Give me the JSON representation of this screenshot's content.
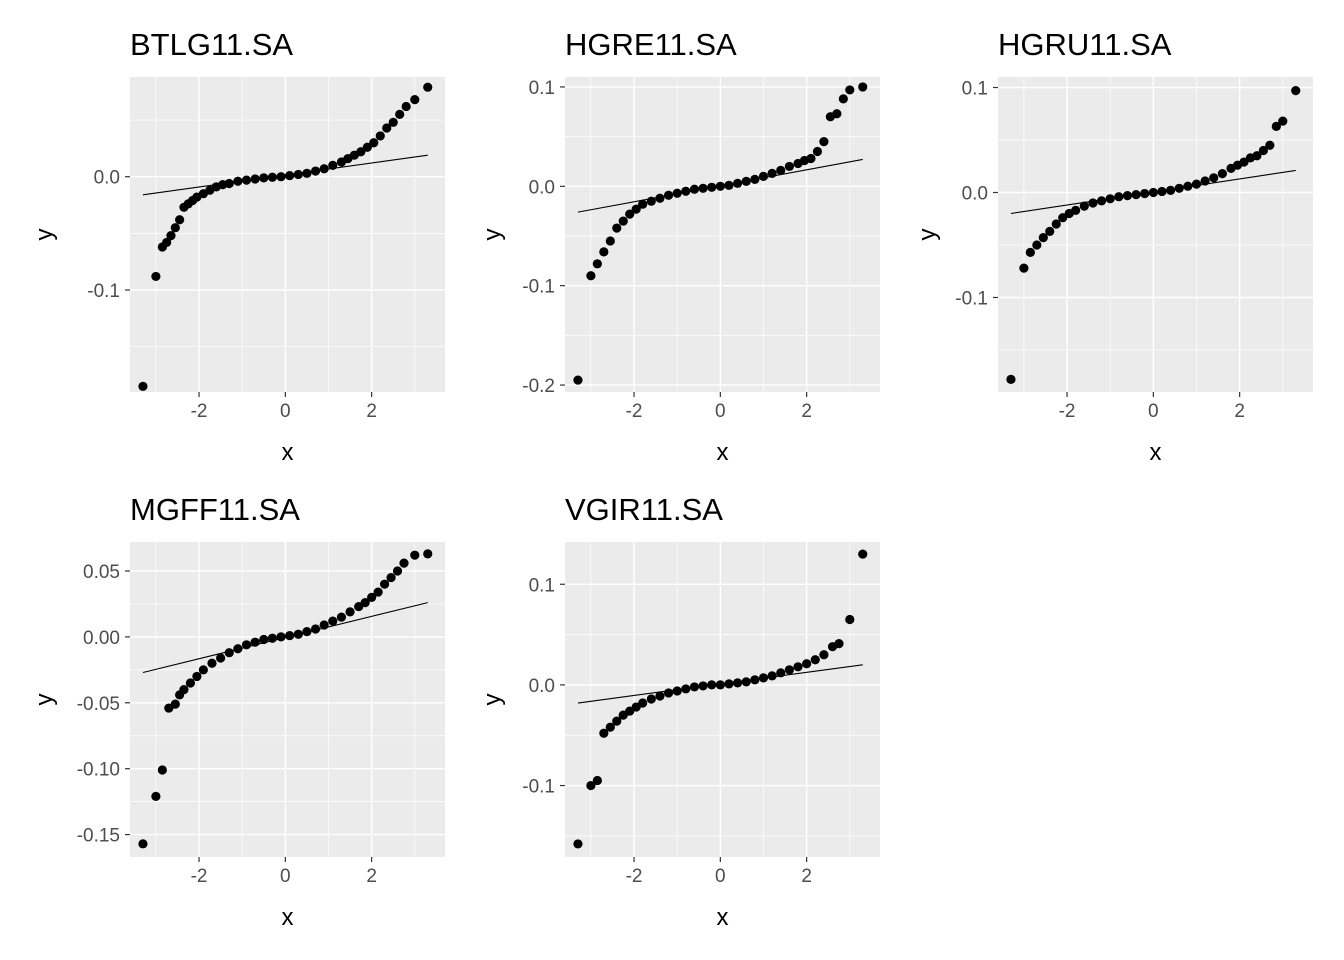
{
  "chart_data": [
    {
      "type": "scatter",
      "title": "BTLG11.SA",
      "xlabel": "x",
      "ylabel": "y",
      "xlim": [
        -3.6,
        3.7
      ],
      "ylim": [
        -0.19,
        0.088
      ],
      "x_ticks": [
        -2,
        0,
        2
      ],
      "x_tick_labels": [
        "-2",
        "0",
        "2"
      ],
      "y_ticks": [
        0.0,
        -0.1
      ],
      "y_tick_labels": [
        "0.0",
        "-0.1"
      ],
      "grid": true,
      "reference_line": [
        [
          -3.3,
          -0.016
        ],
        [
          3.3,
          0.019
        ]
      ],
      "x": [
        -3.3,
        -3.0,
        -2.85,
        -2.75,
        -2.65,
        -2.55,
        -2.45,
        -2.35,
        -2.25,
        -2.15,
        -2.05,
        -1.9,
        -1.75,
        -1.6,
        -1.45,
        -1.3,
        -1.1,
        -0.9,
        -0.7,
        -0.5,
        -0.3,
        -0.1,
        0.1,
        0.3,
        0.5,
        0.7,
        0.9,
        1.1,
        1.3,
        1.45,
        1.6,
        1.75,
        1.9,
        2.05,
        2.2,
        2.35,
        2.5,
        2.65,
        2.8,
        3.0,
        3.3
      ],
      "y": [
        -0.185,
        -0.088,
        -0.062,
        -0.058,
        -0.052,
        -0.045,
        -0.038,
        -0.027,
        -0.024,
        -0.021,
        -0.018,
        -0.015,
        -0.012,
        -0.009,
        -0.007,
        -0.006,
        -0.004,
        -0.003,
        -0.002,
        -0.001,
        -0.0005,
        0.0,
        0.001,
        0.002,
        0.003,
        0.005,
        0.007,
        0.01,
        0.013,
        0.016,
        0.019,
        0.022,
        0.026,
        0.03,
        0.036,
        0.043,
        0.048,
        0.055,
        0.062,
        0.068,
        0.079
      ]
    },
    {
      "type": "scatter",
      "title": "HGRE11.SA",
      "xlabel": "x",
      "ylabel": "y",
      "xlim": [
        -3.6,
        3.7
      ],
      "ylim": [
        -0.207,
        0.11
      ],
      "x_ticks": [
        -2,
        0,
        2
      ],
      "x_tick_labels": [
        "-2",
        "0",
        "2"
      ],
      "y_ticks": [
        0.1,
        0.0,
        -0.1,
        -0.2
      ],
      "y_tick_labels": [
        "0.1",
        "0.0",
        "-0.1",
        "-0.2"
      ],
      "grid": true,
      "reference_line": [
        [
          -3.3,
          -0.026
        ],
        [
          3.3,
          0.027
        ]
      ],
      "x": [
        -3.3,
        -3.0,
        -2.85,
        -2.7,
        -2.55,
        -2.4,
        -2.25,
        -2.1,
        -1.95,
        -1.8,
        -1.6,
        -1.4,
        -1.2,
        -1.0,
        -0.8,
        -0.6,
        -0.4,
        -0.2,
        0.0,
        0.2,
        0.4,
        0.6,
        0.8,
        1.0,
        1.2,
        1.4,
        1.6,
        1.8,
        1.95,
        2.1,
        2.25,
        2.4,
        2.55,
        2.7,
        2.85,
        3.0,
        3.3
      ],
      "y": [
        -0.195,
        -0.09,
        -0.078,
        -0.066,
        -0.055,
        -0.042,
        -0.035,
        -0.028,
        -0.023,
        -0.018,
        -0.015,
        -0.012,
        -0.009,
        -0.007,
        -0.005,
        -0.003,
        -0.002,
        -0.001,
        0.0,
        0.001,
        0.003,
        0.005,
        0.007,
        0.01,
        0.013,
        0.016,
        0.02,
        0.023,
        0.026,
        0.028,
        0.035,
        0.045,
        0.07,
        0.073,
        0.088,
        0.097,
        0.1
      ]
    },
    {
      "type": "scatter",
      "title": "HGRU11.SA",
      "xlabel": "x",
      "ylabel": "y",
      "xlim": [
        -3.6,
        3.7
      ],
      "ylim": [
        -0.19,
        0.11
      ],
      "x_ticks": [
        -2,
        0,
        2
      ],
      "x_tick_labels": [
        "-2",
        "0",
        "2"
      ],
      "y_ticks": [
        0.1,
        0.0,
        -0.1
      ],
      "y_tick_labels": [
        "0.1",
        "0.0",
        "-0.1"
      ],
      "grid": true,
      "reference_line": [
        [
          -3.3,
          -0.02
        ],
        [
          3.3,
          0.021
        ]
      ],
      "x": [
        -3.3,
        -3.0,
        -2.85,
        -2.7,
        -2.55,
        -2.4,
        -2.25,
        -2.1,
        -1.95,
        -1.8,
        -1.6,
        -1.4,
        -1.2,
        -1.0,
        -0.8,
        -0.6,
        -0.4,
        -0.2,
        0.0,
        0.2,
        0.4,
        0.6,
        0.8,
        1.0,
        1.2,
        1.4,
        1.6,
        1.8,
        1.95,
        2.1,
        2.25,
        2.4,
        2.55,
        2.7,
        2.85,
        3.0,
        3.3
      ],
      "y": [
        -0.178,
        -0.072,
        -0.057,
        -0.05,
        -0.043,
        -0.037,
        -0.03,
        -0.024,
        -0.02,
        -0.017,
        -0.013,
        -0.01,
        -0.008,
        -0.006,
        -0.004,
        -0.003,
        -0.002,
        -0.001,
        0.0,
        0.001,
        0.002,
        0.004,
        0.006,
        0.008,
        0.011,
        0.014,
        0.018,
        0.023,
        0.026,
        0.029,
        0.033,
        0.035,
        0.04,
        0.045,
        0.063,
        0.068,
        0.097
      ]
    },
    {
      "type": "scatter",
      "title": "MGFF11.SA",
      "xlabel": "x",
      "ylabel": "y",
      "xlim": [
        -3.6,
        3.7
      ],
      "ylim": [
        -0.167,
        0.072
      ],
      "x_ticks": [
        -2,
        0,
        2
      ],
      "x_tick_labels": [
        "-2",
        "0",
        "2"
      ],
      "y_ticks": [
        0.05,
        0.0,
        -0.05,
        -0.1,
        -0.15
      ],
      "y_tick_labels": [
        "0.05",
        "0.00",
        "-0.05",
        "-0.10",
        "-0.15"
      ],
      "grid": true,
      "reference_line": [
        [
          -3.3,
          -0.027
        ],
        [
          3.3,
          0.026
        ]
      ],
      "x": [
        -3.3,
        -3.0,
        -2.85,
        -2.7,
        -2.55,
        -2.45,
        -2.35,
        -2.2,
        -2.05,
        -1.9,
        -1.7,
        -1.5,
        -1.3,
        -1.1,
        -0.9,
        -0.7,
        -0.5,
        -0.3,
        -0.1,
        0.1,
        0.3,
        0.5,
        0.7,
        0.9,
        1.1,
        1.3,
        1.5,
        1.7,
        1.85,
        2.0,
        2.15,
        2.3,
        2.45,
        2.6,
        2.75,
        3.0,
        3.3
      ],
      "y": [
        -0.157,
        -0.121,
        -0.101,
        -0.054,
        -0.051,
        -0.044,
        -0.04,
        -0.035,
        -0.03,
        -0.025,
        -0.02,
        -0.016,
        -0.012,
        -0.009,
        -0.006,
        -0.004,
        -0.002,
        -0.001,
        0.0,
        0.001,
        0.002,
        0.004,
        0.006,
        0.009,
        0.012,
        0.015,
        0.019,
        0.023,
        0.026,
        0.03,
        0.034,
        0.04,
        0.045,
        0.05,
        0.056,
        0.062,
        0.063
      ]
    },
    {
      "type": "scatter",
      "title": "VGIR11.SA",
      "xlabel": "x",
      "ylabel": "y",
      "xlim": [
        -3.6,
        3.7
      ],
      "ylim": [
        -0.171,
        0.142
      ],
      "x_ticks": [
        -2,
        0,
        2
      ],
      "x_tick_labels": [
        "-2",
        "0",
        "2"
      ],
      "y_ticks": [
        0.1,
        0.0,
        -0.1
      ],
      "y_tick_labels": [
        "0.1",
        "0.0",
        "-0.1"
      ],
      "grid": true,
      "reference_line": [
        [
          -3.3,
          -0.018
        ],
        [
          3.3,
          0.02
        ]
      ],
      "x": [
        -3.3,
        -3.0,
        -2.85,
        -2.7,
        -2.55,
        -2.4,
        -2.25,
        -2.1,
        -1.95,
        -1.8,
        -1.6,
        -1.4,
        -1.2,
        -1.0,
        -0.8,
        -0.6,
        -0.4,
        -0.2,
        0.0,
        0.2,
        0.4,
        0.6,
        0.8,
        1.0,
        1.2,
        1.4,
        1.6,
        1.8,
        2.0,
        2.2,
        2.4,
        2.6,
        2.75,
        3.0,
        3.3
      ],
      "y": [
        -0.158,
        -0.1,
        -0.095,
        -0.048,
        -0.042,
        -0.036,
        -0.03,
        -0.026,
        -0.022,
        -0.018,
        -0.014,
        -0.011,
        -0.008,
        -0.006,
        -0.004,
        -0.002,
        -0.001,
        0.0,
        0.0,
        0.001,
        0.002,
        0.003,
        0.005,
        0.007,
        0.009,
        0.012,
        0.015,
        0.018,
        0.021,
        0.025,
        0.03,
        0.038,
        0.041,
        0.065,
        0.13
      ]
    }
  ]
}
